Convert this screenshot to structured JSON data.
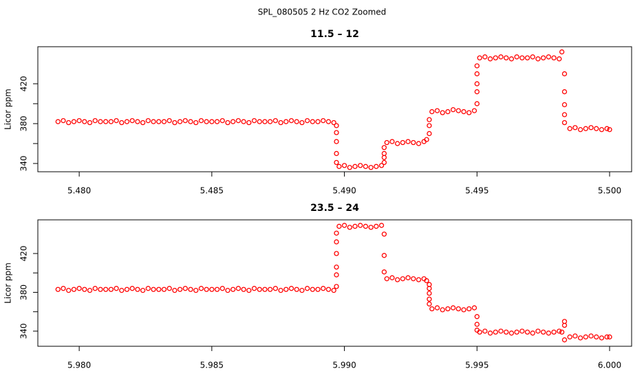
{
  "title": "SPL_080505  2 Hz CO2 Zoomed",
  "chart_data": [
    {
      "type": "scatter",
      "title": "11.5 – 12",
      "ylabel": "Licor ppm",
      "color": "#ff0000",
      "marker": "open-circle",
      "xlim": [
        5.47844,
        5.50083
      ],
      "ylim": [
        331.7,
        457.2
      ],
      "xticks": [
        {
          "value": 5.48,
          "label": "5.480"
        },
        {
          "value": 5.485,
          "label": "5.485"
        },
        {
          "value": 5.49,
          "label": "5.490"
        },
        {
          "value": 5.495,
          "label": "5.495"
        },
        {
          "value": 5.5,
          "label": "5.500"
        }
      ],
      "yticks": [
        340,
        380,
        420
      ],
      "yminorticks": [
        360,
        400
      ],
      "x": [
        5.4792,
        5.4794,
        5.4796,
        5.4798,
        5.48,
        5.4802,
        5.4804,
        5.4806,
        5.4808,
        5.481,
        5.4812,
        5.4814,
        5.4816,
        5.4818,
        5.482,
        5.4822,
        5.4824,
        5.4826,
        5.4828,
        5.483,
        5.4832,
        5.4834,
        5.4836,
        5.4838,
        5.484,
        5.4842,
        5.4844,
        5.4846,
        5.4848,
        5.485,
        5.4852,
        5.4854,
        5.4856,
        5.4858,
        5.486,
        5.4862,
        5.4864,
        5.4866,
        5.4868,
        5.487,
        5.4872,
        5.4874,
        5.4876,
        5.4878,
        5.488,
        5.4882,
        5.4884,
        5.4886,
        5.4888,
        5.489,
        5.4892,
        5.4894,
        5.4896,
        5.4897,
        5.4897,
        5.4897,
        5.4897,
        5.4897,
        5.4898,
        5.49,
        5.4902,
        5.4904,
        5.4906,
        5.4908,
        5.491,
        5.4912,
        5.4914,
        5.4915,
        5.4915,
        5.4915,
        5.4915,
        5.4916,
        5.4918,
        5.492,
        5.4922,
        5.4924,
        5.4926,
        5.4928,
        5.493,
        5.4931,
        5.4932,
        5.4932,
        5.4932,
        5.4933,
        5.4935,
        5.4937,
        5.4939,
        5.4941,
        5.4943,
        5.4945,
        5.4947,
        5.4949,
        5.495,
        5.495,
        5.495,
        5.495,
        5.495,
        5.4951,
        5.4953,
        5.4955,
        5.4957,
        5.4959,
        5.4961,
        5.4963,
        5.4965,
        5.4967,
        5.4969,
        5.4971,
        5.4973,
        5.4975,
        5.4977,
        5.4979,
        5.4981,
        5.4982,
        5.4983,
        5.4983,
        5.4983,
        5.4983,
        5.4983,
        5.4985,
        5.4987,
        5.4989,
        5.4991,
        5.4993,
        5.4995,
        5.4997,
        5.4999,
        5.5
      ],
      "values": [
        382,
        383,
        381,
        382,
        383,
        382,
        381,
        383,
        382,
        382,
        382,
        383,
        381,
        382,
        383,
        382,
        381,
        383,
        382,
        382,
        382,
        383,
        381,
        382,
        383,
        382,
        381,
        383,
        382,
        382,
        382,
        383,
        381,
        382,
        383,
        382,
        381,
        383,
        382,
        382,
        382,
        383,
        381,
        382,
        383,
        382,
        381,
        383,
        382,
        382,
        383,
        382,
        381,
        378,
        371,
        362,
        350,
        341,
        337,
        338,
        336,
        337,
        338,
        337,
        336,
        337,
        338,
        341,
        346,
        350,
        356,
        361,
        362,
        360,
        361,
        362,
        361,
        360,
        362,
        364,
        370,
        378,
        384,
        392,
        393,
        391,
        392,
        394,
        393,
        392,
        391,
        393,
        400,
        412,
        420,
        430,
        438,
        446,
        447,
        445,
        446,
        447,
        446,
        445,
        447,
        446,
        446,
        447,
        445,
        446,
        447,
        446,
        445,
        452,
        430,
        412,
        399,
        389,
        381,
        375,
        376,
        374,
        375,
        376,
        375,
        374,
        375,
        374
      ]
    },
    {
      "type": "scatter",
      "title": "23.5 – 24",
      "ylabel": "Licor ppm",
      "color": "#ff0000",
      "marker": "open-circle",
      "xlim": [
        5.97844,
        6.00083
      ],
      "ylim": [
        324.4,
        454.7
      ],
      "xticks": [
        {
          "value": 5.98,
          "label": "5.980"
        },
        {
          "value": 5.985,
          "label": "5.985"
        },
        {
          "value": 5.99,
          "label": "5.990"
        },
        {
          "value": 5.995,
          "label": "5.995"
        },
        {
          "value": 6.0,
          "label": "6.000"
        }
      ],
      "yticks": [
        340,
        380,
        420
      ],
      "yminorticks": [
        360,
        400
      ],
      "x": [
        5.9792,
        5.9794,
        5.9796,
        5.9798,
        5.98,
        5.9802,
        5.9804,
        5.9806,
        5.9808,
        5.981,
        5.9812,
        5.9814,
        5.9816,
        5.9818,
        5.982,
        5.9822,
        5.9824,
        5.9826,
        5.9828,
        5.983,
        5.9832,
        5.9834,
        5.9836,
        5.9838,
        5.984,
        5.9842,
        5.9844,
        5.9846,
        5.9848,
        5.985,
        5.9852,
        5.9854,
        5.9856,
        5.9858,
        5.986,
        5.9862,
        5.9864,
        5.9866,
        5.9868,
        5.987,
        5.9872,
        5.9874,
        5.9876,
        5.9878,
        5.988,
        5.9882,
        5.9884,
        5.9886,
        5.9888,
        5.989,
        5.9892,
        5.9894,
        5.9896,
        5.9897,
        5.9897,
        5.9897,
        5.9897,
        5.9897,
        5.9897,
        5.9898,
        5.99,
        5.9902,
        5.9904,
        5.9906,
        5.9908,
        5.991,
        5.9912,
        5.9914,
        5.9915,
        5.9915,
        5.9915,
        5.9916,
        5.9918,
        5.992,
        5.9922,
        5.9924,
        5.9926,
        5.9928,
        5.993,
        5.9931,
        5.9932,
        5.9932,
        5.9932,
        5.9932,
        5.9932,
        5.9933,
        5.9935,
        5.9937,
        5.9939,
        5.9941,
        5.9943,
        5.9945,
        5.9947,
        5.9949,
        5.995,
        5.995,
        5.995,
        5.9951,
        5.9953,
        5.9955,
        5.9957,
        5.9959,
        5.9961,
        5.9963,
        5.9965,
        5.9967,
        5.9969,
        5.9971,
        5.9973,
        5.9975,
        5.9977,
        5.9979,
        5.9981,
        5.9982,
        5.9983,
        5.9983,
        5.9983,
        5.9985,
        5.9987,
        5.9989,
        5.9991,
        5.9993,
        5.9995,
        5.9997,
        5.9999,
        6.0
      ],
      "values": [
        383,
        384,
        382,
        383,
        384,
        383,
        382,
        384,
        383,
        383,
        383,
        384,
        382,
        383,
        384,
        383,
        382,
        384,
        383,
        383,
        383,
        384,
        382,
        383,
        384,
        383,
        382,
        384,
        383,
        383,
        383,
        384,
        382,
        383,
        384,
        383,
        382,
        384,
        383,
        383,
        383,
        384,
        382,
        383,
        384,
        383,
        382,
        384,
        383,
        383,
        384,
        383,
        382,
        386,
        398,
        406,
        420,
        432,
        441,
        448,
        449,
        447,
        448,
        449,
        448,
        447,
        448,
        449,
        440,
        418,
        401,
        394,
        395,
        393,
        394,
        395,
        394,
        393,
        394,
        392,
        388,
        384,
        379,
        373,
        368,
        363,
        364,
        362,
        363,
        364,
        363,
        362,
        363,
        364,
        355,
        347,
        341,
        339,
        340,
        338,
        339,
        340,
        339,
        338,
        339,
        340,
        339,
        338,
        340,
        339,
        338,
        339,
        340,
        339,
        350,
        346,
        331,
        334,
        335,
        333,
        334,
        335,
        334,
        333,
        334,
        334
      ]
    }
  ]
}
